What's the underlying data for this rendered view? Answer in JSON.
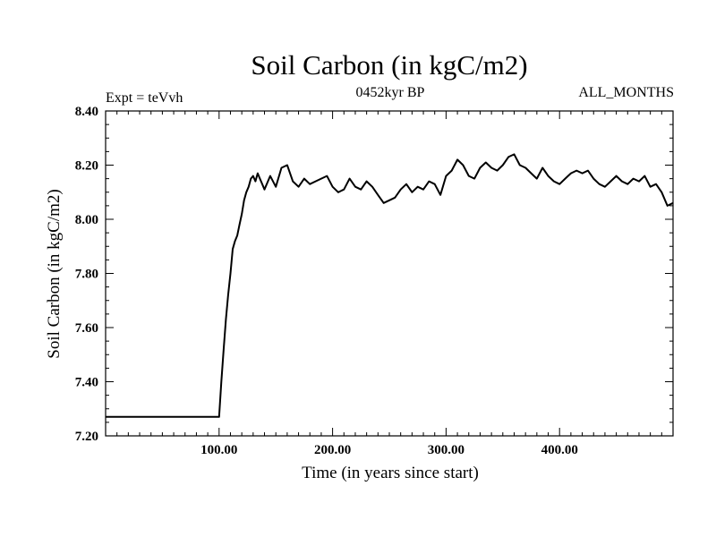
{
  "chart_data": {
    "type": "line",
    "title": "Soil Carbon (in kgC/m2)",
    "subtitle": "0452kyr BP",
    "left_label": "Expt = teVvh",
    "right_label": "ALL_MONTHS",
    "xlabel": "Time (in years since start)",
    "ylabel": "Soil Carbon (in kgC/m2)",
    "xlim": [
      0,
      500
    ],
    "ylim": [
      7.2,
      8.4
    ],
    "x_ticks": [
      100,
      200,
      300,
      400
    ],
    "x_tick_labels": [
      "100.00",
      "200.00",
      "300.00",
      "400.00"
    ],
    "y_ticks": [
      7.2,
      7.4,
      7.6,
      7.8,
      8.0,
      8.2,
      8.4
    ],
    "y_tick_labels": [
      "7.20",
      "7.40",
      "7.60",
      "7.80",
      "8.00",
      "8.20",
      "8.40"
    ],
    "grid": false,
    "legend": "none",
    "line_color": "#000000",
    "series": [
      {
        "x": [
          0,
          100,
          102,
          104,
          106,
          108,
          110,
          112,
          114,
          116,
          118,
          120,
          122,
          124,
          126,
          128,
          130,
          132,
          134,
          136,
          138,
          140,
          145,
          150,
          155,
          160,
          165,
          170,
          175,
          180,
          185,
          190,
          195,
          200,
          205,
          210,
          215,
          220,
          225,
          230,
          235,
          240,
          245,
          250,
          255,
          260,
          265,
          270,
          275,
          280,
          285,
          290,
          295,
          300,
          305,
          310,
          315,
          320,
          325,
          330,
          335,
          340,
          345,
          350,
          355,
          360,
          365,
          370,
          375,
          380,
          385,
          390,
          395,
          400,
          405,
          410,
          415,
          420,
          425,
          430,
          435,
          440,
          445,
          450,
          455,
          460,
          465,
          470,
          475,
          480,
          485,
          490,
          495,
          500
        ],
        "values": [
          7.27,
          7.27,
          7.4,
          7.52,
          7.63,
          7.72,
          7.8,
          7.89,
          7.92,
          7.94,
          7.98,
          8.02,
          8.07,
          8.1,
          8.12,
          8.15,
          8.16,
          8.14,
          8.17,
          8.15,
          8.13,
          8.11,
          8.16,
          8.12,
          8.19,
          8.2,
          8.14,
          8.12,
          8.15,
          8.13,
          8.14,
          8.15,
          8.16,
          8.12,
          8.1,
          8.11,
          8.15,
          8.12,
          8.11,
          8.14,
          8.12,
          8.09,
          8.06,
          8.07,
          8.08,
          8.11,
          8.13,
          8.1,
          8.12,
          8.11,
          8.14,
          8.13,
          8.09,
          8.16,
          8.18,
          8.22,
          8.2,
          8.16,
          8.15,
          8.19,
          8.21,
          8.19,
          8.18,
          8.2,
          8.23,
          8.24,
          8.2,
          8.19,
          8.17,
          8.15,
          8.19,
          8.16,
          8.14,
          8.13,
          8.15,
          8.17,
          8.18,
          8.17,
          8.18,
          8.15,
          8.13,
          8.12,
          8.14,
          8.16,
          8.14,
          8.13,
          8.15,
          8.14,
          8.16,
          8.12,
          8.13,
          8.1,
          8.05,
          8.06
        ]
      }
    ]
  }
}
